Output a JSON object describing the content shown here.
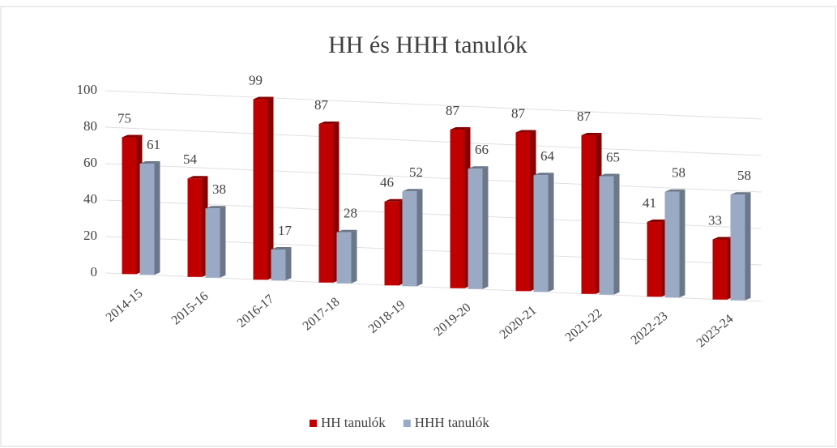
{
  "chart_data": {
    "type": "bar",
    "title": "HH és HHH tanulók",
    "categories": [
      "2014-15",
      "2015-16",
      "2016-17",
      "2017-18",
      "2018-19",
      "2019-20",
      "2020-21",
      "2021-22",
      "2022-23",
      "2023-24"
    ],
    "series": [
      {
        "name": "HH tanulók",
        "color": "#c00000",
        "values": [
          75,
          54,
          99,
          87,
          46,
          87,
          87,
          87,
          41,
          33
        ]
      },
      {
        "name": "HHH tanulók",
        "color": "#9aaac4",
        "values": [
          61,
          38,
          17,
          28,
          52,
          66,
          64,
          65,
          58,
          58
        ]
      }
    ],
    "ylim": [
      0,
      100
    ],
    "yticks": [
      0,
      20,
      40,
      60,
      80,
      100
    ],
    "grid": true,
    "legend": "bottom"
  }
}
